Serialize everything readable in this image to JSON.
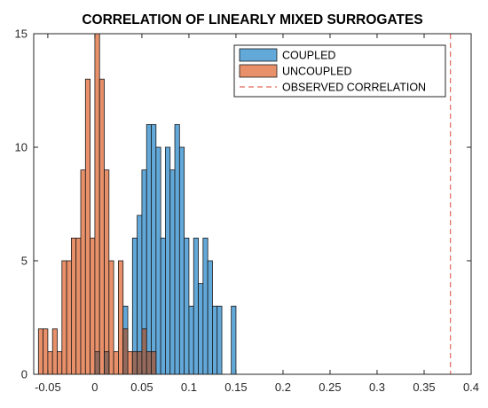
{
  "chart_data": {
    "type": "bar",
    "title": "CORRELATION OF LINEARLY MIXED SURROGATES",
    "xlabel": "",
    "ylabel": "",
    "xlim": [
      -0.065,
      0.4
    ],
    "ylim": [
      0,
      15
    ],
    "bin_width": 0.005,
    "xticks": [
      -0.05,
      0,
      0.05,
      0.1,
      0.15,
      0.2,
      0.25,
      0.3,
      0.35,
      0.4
    ],
    "xtick_labels": [
      "-0.05",
      "0",
      "0.05",
      "0.1",
      "0.15",
      "0.2",
      "0.25",
      "0.3",
      "0.35",
      "0.4"
    ],
    "yticks": [
      0,
      5,
      10,
      15
    ],
    "ytick_labels": [
      "0",
      "5",
      "10",
      "15"
    ],
    "legend_position": "top-right",
    "grid": false,
    "series": [
      {
        "name": "COUPLED",
        "color": "#0072BD",
        "face_color": "#62a8d9",
        "bin_edges_start": [
          0.0,
          0.005,
          0.01,
          0.015,
          0.02,
          0.025,
          0.03,
          0.035,
          0.04,
          0.045,
          0.05,
          0.055,
          0.06,
          0.065,
          0.07,
          0.075,
          0.08,
          0.085,
          0.09,
          0.095,
          0.1,
          0.105,
          0.11,
          0.115,
          0.12,
          0.125,
          0.13,
          0.135,
          0.14,
          0.145
        ],
        "values": [
          1,
          0,
          1,
          0,
          0,
          0,
          3,
          0,
          6,
          7,
          9,
          11,
          11,
          10,
          6,
          10,
          9,
          11,
          10,
          6,
          3,
          6,
          4,
          6,
          5,
          3,
          3,
          0,
          0,
          3
        ]
      },
      {
        "name": "UNCOUPLED",
        "color": "#D95319",
        "face_color": "#e8906a",
        "bin_edges_start": [
          -0.06,
          -0.055,
          -0.05,
          -0.045,
          -0.04,
          -0.035,
          -0.03,
          -0.025,
          -0.02,
          -0.015,
          -0.01,
          -0.005,
          0.0,
          0.005,
          0.01,
          0.015,
          0.02,
          0.025,
          0.03,
          0.035,
          0.04,
          0.045,
          0.05,
          0.055,
          0.06,
          0.065
        ],
        "values": [
          2,
          2,
          1,
          2,
          1,
          5,
          5,
          6,
          6,
          9,
          13,
          6,
          15,
          13,
          9,
          5,
          1,
          5,
          2,
          1,
          1,
          1,
          2,
          1,
          1,
          0
        ]
      },
      {
        "name": "OBSERVED CORRELATION",
        "type": "vline",
        "x": 0.378,
        "color": "#e06a5a",
        "linestyle": "dashed"
      }
    ]
  }
}
